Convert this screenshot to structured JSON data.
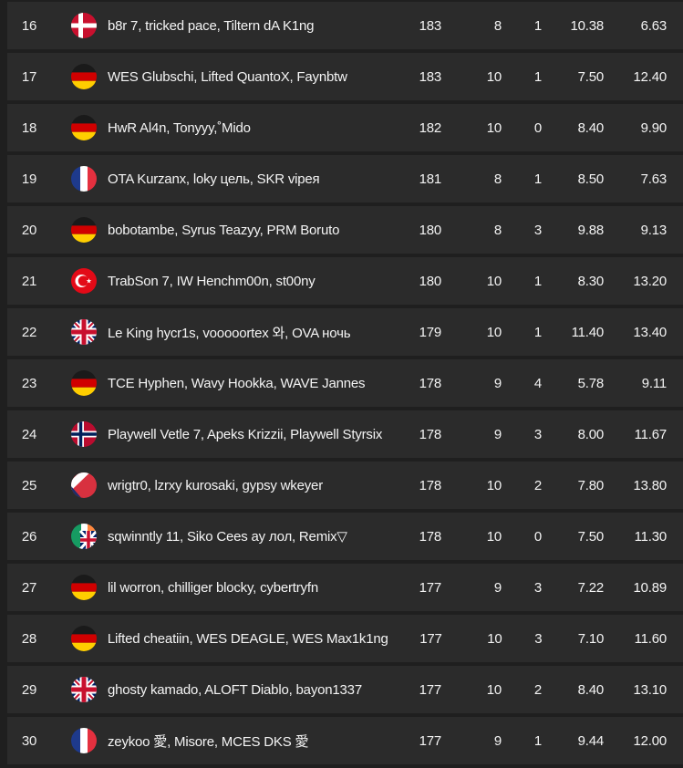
{
  "colors": {
    "page_bg": "#1f1f1f",
    "row_bg": "#2b2b2b",
    "text": "#f4f4f4"
  },
  "rows": [
    {
      "rank": "16",
      "flag": "denmark",
      "players": "b8r 7, tricked pace, Tiltern dA K1ng",
      "v1": "183",
      "v2": "8",
      "v3": "1",
      "v4": "10.38",
      "v5": "6.63"
    },
    {
      "rank": "17",
      "flag": "germany",
      "players": "WES Glubschi, Lifted QuantoX, Faynbtw",
      "v1": "183",
      "v2": "10",
      "v3": "1",
      "v4": "7.50",
      "v5": "12.40"
    },
    {
      "rank": "18",
      "flag": "germany",
      "players": "HwR Al4n, Tonyyy,˚Mido",
      "v1": "182",
      "v2": "10",
      "v3": "0",
      "v4": "8.40",
      "v5": "9.90"
    },
    {
      "rank": "19",
      "flag": "france",
      "players": "OTA Kurzanx, loky цель, SKR vipeя",
      "v1": "181",
      "v2": "8",
      "v3": "1",
      "v4": "8.50",
      "v5": "7.63"
    },
    {
      "rank": "20",
      "flag": "germany",
      "players": "bobotambe, Syrus Teazyy, PRM Boruto",
      "v1": "180",
      "v2": "8",
      "v3": "3",
      "v4": "9.88",
      "v5": "9.13"
    },
    {
      "rank": "21",
      "flag": "turkey",
      "players": "TrabSon 7, IW Henchm00n, st00ny",
      "v1": "180",
      "v2": "10",
      "v3": "1",
      "v4": "8.30",
      "v5": "13.20"
    },
    {
      "rank": "22",
      "flag": "uk",
      "players": "Le King hycr1s, vooooortex 와, OVA ночь",
      "v1": "179",
      "v2": "10",
      "v3": "1",
      "v4": "11.40",
      "v5": "13.40"
    },
    {
      "rank": "23",
      "flag": "germany",
      "players": "TCE Hyphen, Wavy Hookka, WAVE Jannes",
      "v1": "178",
      "v2": "9",
      "v3": "4",
      "v4": "5.78",
      "v5": "9.11"
    },
    {
      "rank": "24",
      "flag": "norway",
      "players": "Playwell Vetle 7, Apeks Krizzii, Playwell Styrsix",
      "v1": "178",
      "v2": "9",
      "v3": "3",
      "v4": "8.00",
      "v5": "11.67"
    },
    {
      "rank": "25",
      "flag": "czechia",
      "players": "wrigtr0, lzrxy kurosaki, gypsy wkeyer",
      "v1": "178",
      "v2": "10",
      "v3": "2",
      "v4": "7.80",
      "v5": "13.80"
    },
    {
      "rank": "26",
      "flag": "ireland-uk",
      "players": "sqwinntly 11, Siko Cees ay лол, Remix▽",
      "v1": "178",
      "v2": "10",
      "v3": "0",
      "v4": "7.50",
      "v5": "11.30"
    },
    {
      "rank": "27",
      "flag": "germany",
      "players": "lil worron, chilliger blocky, cybertryfn",
      "v1": "177",
      "v2": "9",
      "v3": "3",
      "v4": "7.22",
      "v5": "10.89"
    },
    {
      "rank": "28",
      "flag": "germany",
      "players": "Lifted cheatiin, WES DEAGLE, WES Max1k1ng",
      "v1": "177",
      "v2": "10",
      "v3": "3",
      "v4": "7.10",
      "v5": "11.60"
    },
    {
      "rank": "29",
      "flag": "uk",
      "players": "ghosty kamado, ALOFT Diablo, bayon1337",
      "v1": "177",
      "v2": "10",
      "v3": "2",
      "v4": "8.40",
      "v5": "13.10"
    },
    {
      "rank": "30",
      "flag": "france",
      "players": "zeykoo 愛, Misore, MCES DKS 愛",
      "v1": "177",
      "v2": "9",
      "v3": "1",
      "v4": "9.44",
      "v5": "12.00"
    }
  ]
}
